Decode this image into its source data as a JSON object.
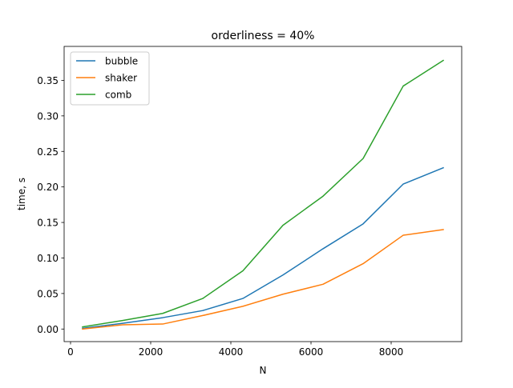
{
  "chart_data": {
    "type": "line",
    "title": "orderliness = 40%",
    "xlabel": "N",
    "ylabel": "time, s",
    "xlim": [
      -160,
      9760
    ],
    "ylim": [
      -0.0177,
      0.3978
    ],
    "x": [
      300,
      1300,
      2300,
      3300,
      4300,
      5300,
      6300,
      7300,
      8300,
      9300
    ],
    "series": [
      {
        "name": "bubble",
        "color": "#1f77b4",
        "values": [
          0.001,
          0.008,
          0.016,
          0.026,
          0.043,
          0.076,
          0.113,
          0.148,
          0.204,
          0.227
        ]
      },
      {
        "name": "shaker",
        "color": "#ff7f0e",
        "values": [
          0.0,
          0.006,
          0.007,
          0.019,
          0.032,
          0.049,
          0.063,
          0.092,
          0.132,
          0.14
        ]
      },
      {
        "name": "comb",
        "color": "#2ca02c",
        "values": [
          0.003,
          0.012,
          0.022,
          0.043,
          0.082,
          0.146,
          0.187,
          0.24,
          0.342,
          0.378
        ]
      }
    ],
    "xticks": [
      0,
      2000,
      4000,
      6000,
      8000
    ],
    "xtick_labels": [
      "0",
      "2000",
      "4000",
      "6000",
      "8000"
    ],
    "yticks": [
      0.0,
      0.05,
      0.1,
      0.15,
      0.2,
      0.25,
      0.3,
      0.35
    ],
    "ytick_labels": [
      "0.00",
      "0.05",
      "0.10",
      "0.15",
      "0.20",
      "0.25",
      "0.30",
      "0.35"
    ],
    "grid": false,
    "legend_position": "upper-left"
  }
}
